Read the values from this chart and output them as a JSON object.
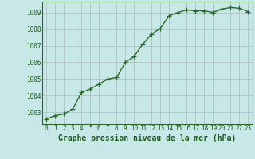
{
  "x": [
    0,
    1,
    2,
    3,
    4,
    5,
    6,
    7,
    8,
    9,
    10,
    11,
    12,
    13,
    14,
    15,
    16,
    17,
    18,
    19,
    20,
    21,
    22,
    23
  ],
  "y": [
    1002.6,
    1002.8,
    1002.9,
    1003.2,
    1004.2,
    1004.4,
    1004.7,
    1005.0,
    1005.1,
    1006.0,
    1006.35,
    1007.1,
    1007.7,
    1008.05,
    1008.8,
    1009.0,
    1009.15,
    1009.1,
    1009.1,
    1009.0,
    1009.2,
    1009.3,
    1009.25,
    1009.05
  ],
  "line_color": "#2d6a2d",
  "marker": "+",
  "marker_size": 4,
  "bg_color": "#c8e8e8",
  "grid_color": "#b0c8c8",
  "xlabel": "Graphe pression niveau de la mer (hPa)",
  "xlabel_fontsize": 7,
  "ylabel_ticks": [
    1003,
    1004,
    1005,
    1006,
    1007,
    1008,
    1009
  ],
  "ylim": [
    1002.3,
    1009.65
  ],
  "xlim": [
    -0.5,
    23.5
  ],
  "xticks": [
    0,
    1,
    2,
    3,
    4,
    5,
    6,
    7,
    8,
    9,
    10,
    11,
    12,
    13,
    14,
    15,
    16,
    17,
    18,
    19,
    20,
    21,
    22,
    23
  ],
  "tick_fontsize": 5.5,
  "line_width": 1.0,
  "text_color": "#1a5c1a"
}
